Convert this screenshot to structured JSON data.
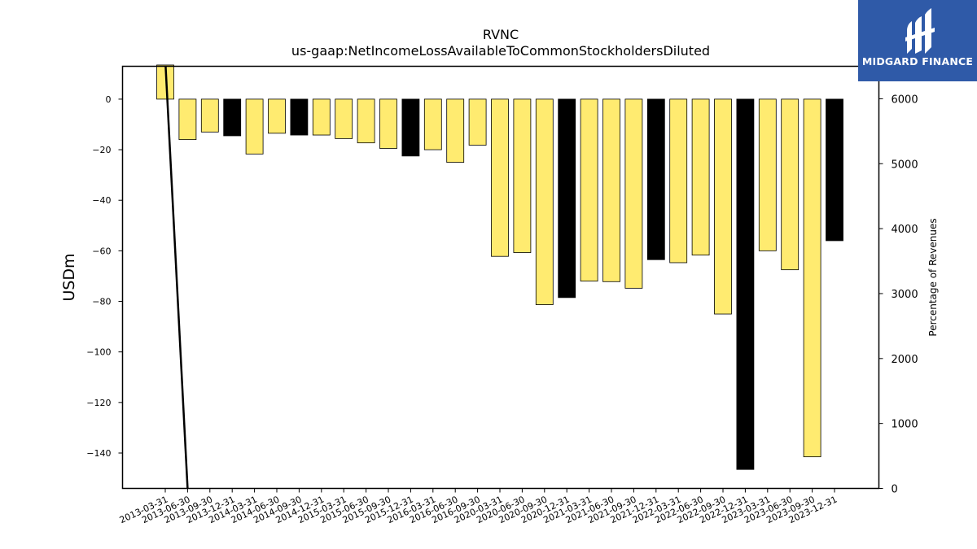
{
  "logo": {
    "text": "MIDGARD FINANCE",
    "icon": "midgard-logo-icon",
    "background": "#2f5aa8"
  },
  "chart_data": {
    "type": "bar",
    "title": "RVNC",
    "subtitle": "us-gaap:NetIncomeLossAvailableToCommonStockholdersDiluted",
    "ylabel": "USDm",
    "y2label": "Percentage of Revenues",
    "ylim": [
      -154,
      13
    ],
    "y2lim": [
      0,
      6500
    ],
    "yticks": [
      0,
      -20,
      -40,
      -60,
      -80,
      -100,
      -120,
      -140
    ],
    "y2ticks": [
      0,
      1000,
      2000,
      3000,
      4000,
      5000,
      6000
    ],
    "grid": false,
    "colors": {
      "quarter": "#ffeb70",
      "year_end": "#000000",
      "line": "#000000"
    },
    "categories": [
      "2013-03-31",
      "2013-06-30",
      "2013-09-30",
      "2013-12-31",
      "2014-03-31",
      "2014-06-30",
      "2014-09-30",
      "2014-12-31",
      "2015-03-31",
      "2015-06-30",
      "2015-09-30",
      "2015-12-31",
      "2016-03-31",
      "2016-06-30",
      "2016-09-30",
      "2020-03-31",
      "2020-06-30",
      "2020-09-30",
      "2020-12-31",
      "2021-03-31",
      "2021-06-30",
      "2021-09-30",
      "2021-12-31",
      "2022-03-31",
      "2022-06-30",
      "2022-09-30",
      "2022-12-31",
      "2023-03-31",
      "2023-06-30",
      "2023-09-30",
      "2023-12-31"
    ],
    "values": [
      13.5,
      -16,
      -13,
      -14.5,
      -21.7,
      -13.5,
      -14.2,
      -14.2,
      -15.6,
      -17.3,
      -19.5,
      -22.5,
      -20,
      -25,
      -18.2,
      -62.2,
      -60.7,
      -81.3,
      -78.5,
      -72,
      -72.2,
      -74.8,
      -63.5,
      -64.7,
      -61.7,
      -85,
      -146.5,
      -60,
      -67.5,
      -141.5,
      -56
    ],
    "year_end": [
      false,
      false,
      false,
      true,
      false,
      false,
      true,
      false,
      false,
      false,
      false,
      true,
      false,
      false,
      false,
      false,
      false,
      false,
      true,
      false,
      false,
      false,
      true,
      false,
      false,
      false,
      true,
      false,
      false,
      false,
      true
    ],
    "pct_of_revenue_line": [
      {
        "x": "2013-03-31",
        "y": 6600
      },
      {
        "x": "2013-06-30",
        "y": 0
      }
    ]
  }
}
